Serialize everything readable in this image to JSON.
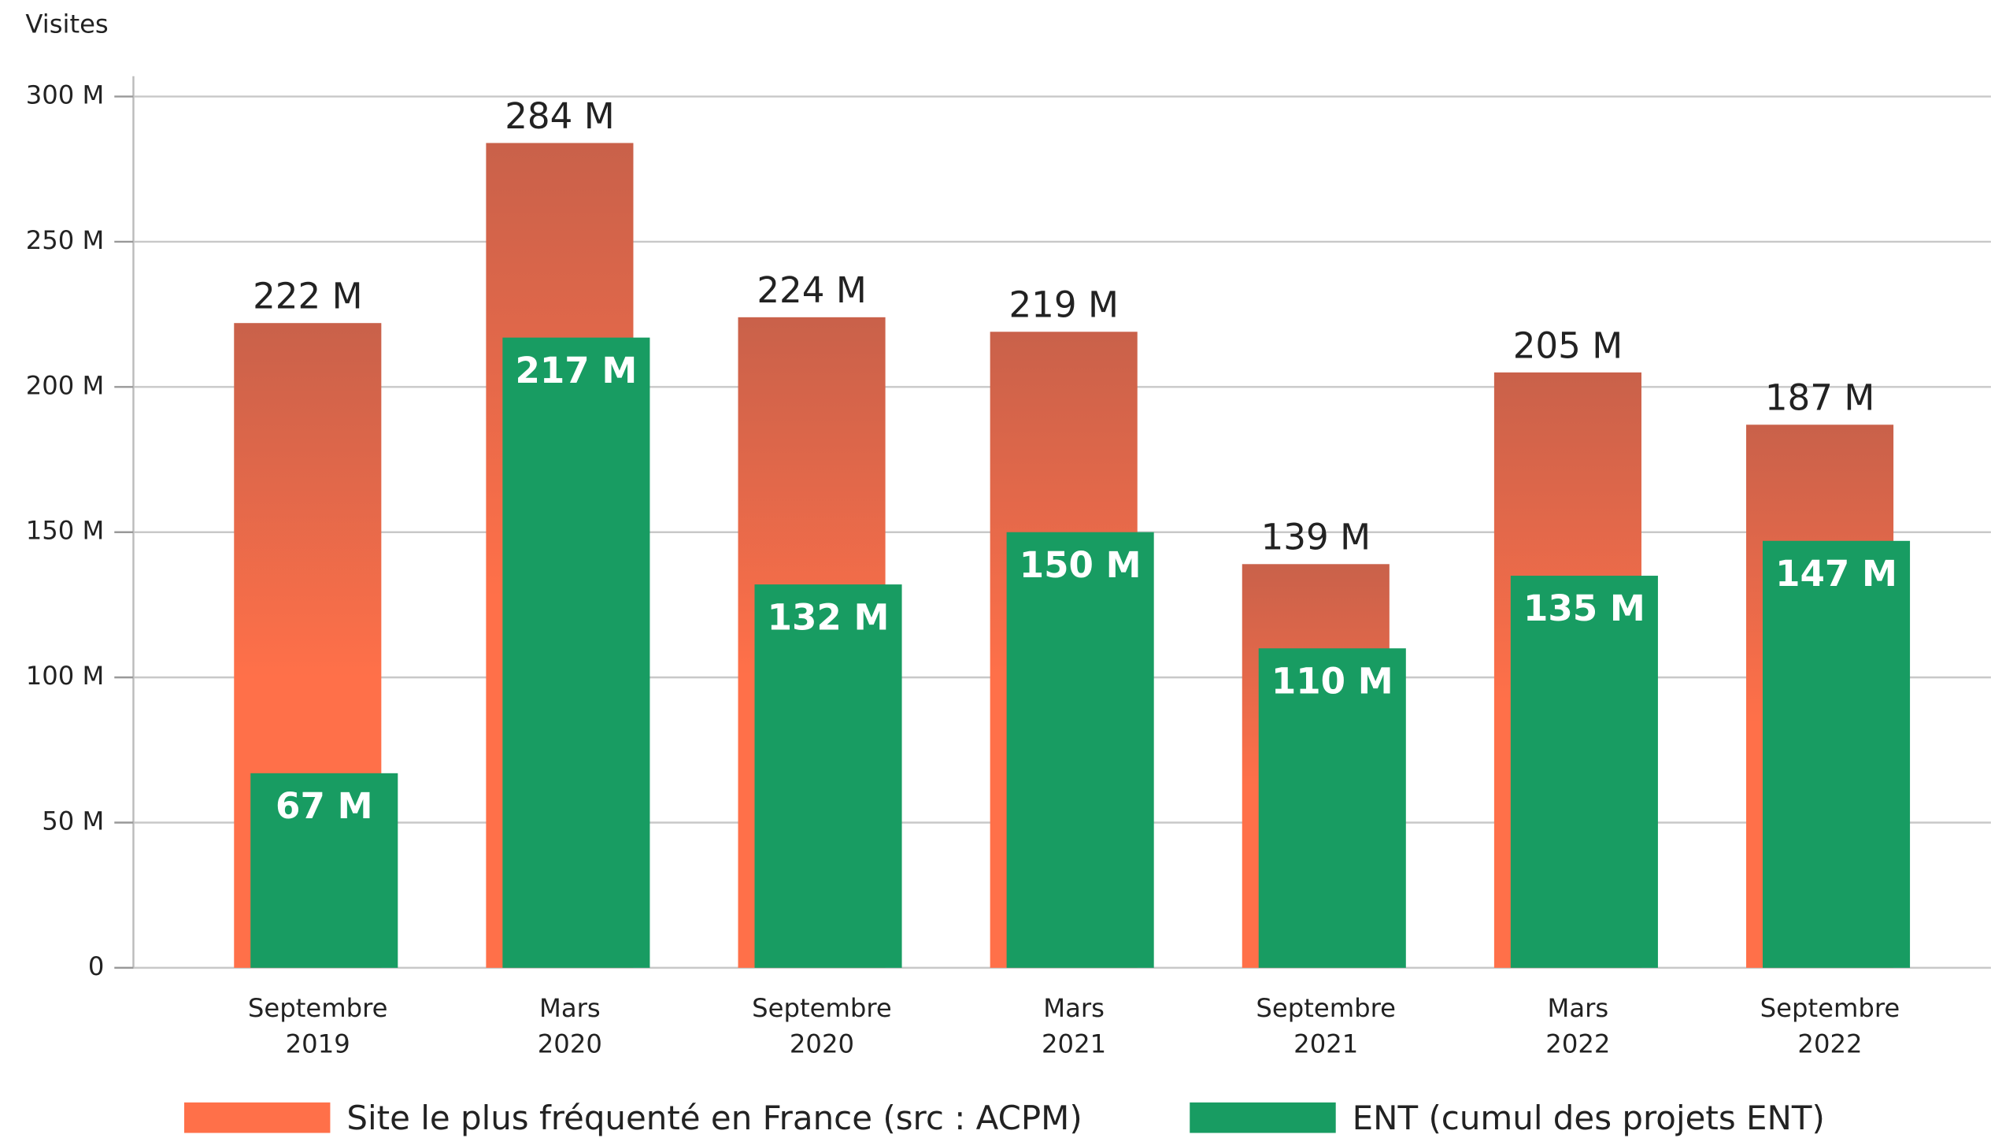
{
  "chart_data": {
    "type": "bar",
    "ylabel": "Visites",
    "categories": [
      [
        "Septembre",
        "2019"
      ],
      [
        "Mars",
        "2020"
      ],
      [
        "Septembre",
        "2020"
      ],
      [
        "Mars",
        "2021"
      ],
      [
        "Septembre",
        "2021"
      ],
      [
        "Mars",
        "2022"
      ],
      [
        "Septembre",
        "2022"
      ]
    ],
    "series": [
      {
        "name": "Site le plus fréquenté en France (src : ACPM)",
        "color": "#ff7049",
        "values": [
          222,
          284,
          224,
          219,
          139,
          205,
          187
        ],
        "value_labels": [
          "222 M",
          "284 M",
          "224 M",
          "219 M",
          "139 M",
          "205 M",
          "187 M"
        ]
      },
      {
        "name": "ENT (cumul des projets ENT)",
        "color": "#189c62",
        "values": [
          67,
          217,
          132,
          150,
          110,
          135,
          147
        ],
        "value_labels": [
          "67 M",
          "217 M",
          "132 M",
          "150 M",
          "110 M",
          "135 M",
          "147 M"
        ]
      }
    ],
    "ylim": [
      0,
      300
    ],
    "yticks": [
      0,
      {
        "value": 50,
        "label": "50 M"
      },
      {
        "value": 100,
        "label": "100 M"
      },
      {
        "value": 150,
        "label": "150 M"
      },
      {
        "value": 200,
        "label": "200 M"
      },
      {
        "value": 250,
        "label": "250 M"
      },
      {
        "value": 300,
        "label": "300 M"
      }
    ],
    "grid": true
  }
}
